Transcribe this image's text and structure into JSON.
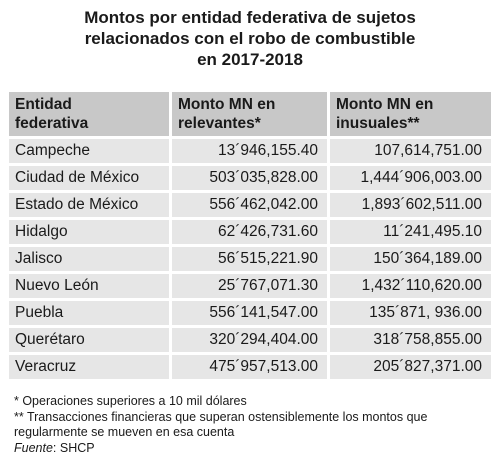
{
  "title": {
    "line1": "Montos por entidad federativa de sujetos",
    "line2": "relacionados con el robo de combustible",
    "line3": "en 2017-2018"
  },
  "table": {
    "headers": [
      [
        "Entidad",
        "federativa"
      ],
      [
        "Monto MN en",
        "relevantes*"
      ],
      [
        "Monto MN en",
        "inusuales**"
      ]
    ],
    "rows": [
      {
        "entidad": "Campeche",
        "relevantes": "13´946,155.40",
        "inusuales": "107,614,751.00"
      },
      {
        "entidad": "Ciudad de México",
        "relevantes": "503´035,828.00",
        "inusuales": "1,444´906,003.00"
      },
      {
        "entidad": "Estado de México",
        "relevantes": "556´462,042.00",
        "inusuales": "1,893´602,511.00"
      },
      {
        "entidad": "Hidalgo",
        "relevantes": "62´426,731.60",
        "inusuales": "11´241,495.10"
      },
      {
        "entidad": "Jalisco",
        "relevantes": "56´515,221.90",
        "inusuales": "150´364,189.00"
      },
      {
        "entidad": "Nuevo León",
        "relevantes": "25´767,071.30",
        "inusuales": "1,432´110,620.00"
      },
      {
        "entidad": "Puebla",
        "relevantes": "556´141,547.00",
        "inusuales": "135´871, 936.00"
      },
      {
        "entidad": "Querétaro",
        "relevantes": "320´294,404.00",
        "inusuales": "318´758,855.00"
      },
      {
        "entidad": "Veracruz",
        "relevantes": "475´957,513.00",
        "inusuales": "205´827,371.00"
      }
    ]
  },
  "notes": {
    "note1": "* Operaciones superiores a 10 mil dólares",
    "note2a": "** Transacciones financieras que superan ostensiblemente los montos que",
    "note2b": "regularmente se mueven en esa cuenta",
    "source_label": "Fuente",
    "source_value": ": SHCP"
  }
}
